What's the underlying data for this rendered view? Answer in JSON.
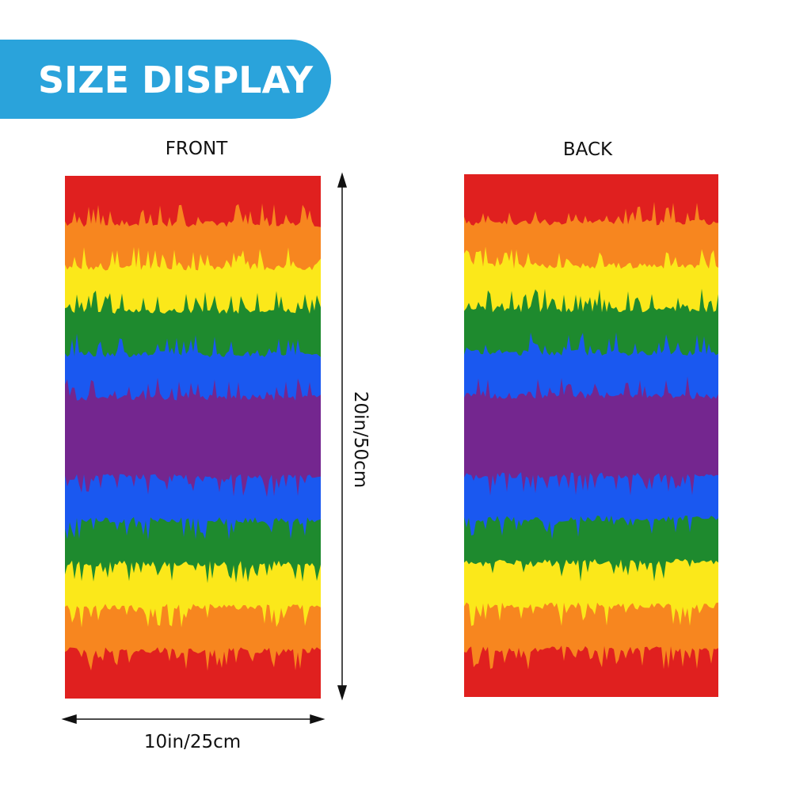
{
  "banner": {
    "title": "SIZE DISPLAY"
  },
  "front": {
    "label": "FRONT"
  },
  "back": {
    "label": "BACK"
  },
  "dimensions": {
    "height": "20in/50cm",
    "width": "10in/25cm"
  }
}
